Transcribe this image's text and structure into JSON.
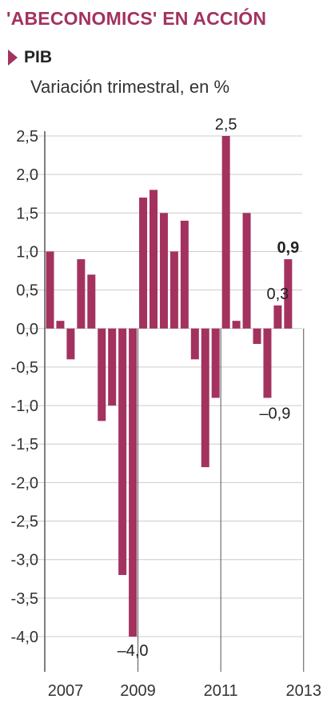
{
  "title": "'ABECONOMICS' EN ACCIÓN",
  "legend": {
    "label": "PIB"
  },
  "subtitle": "Variación trimestral, en %",
  "colors": {
    "bar": "#a3325f",
    "title": "#a3325f",
    "axis": "#555555",
    "grid": "#cccccc"
  },
  "chart_data": {
    "type": "bar",
    "ylim": [
      -4.0,
      2.5
    ],
    "yticks": [
      "2,5",
      "2,0",
      "1,5",
      "1,0",
      "0,5",
      "0,0",
      "-0,5",
      "-1,0",
      "-1,5",
      "-2,0",
      "-2,5",
      "-3,0",
      "-3,5",
      "-4,0"
    ],
    "ytick_values": [
      2.5,
      2.0,
      1.5,
      1.0,
      0.5,
      0.0,
      -0.5,
      -1.0,
      -1.5,
      -2.0,
      -2.5,
      -3.0,
      -3.5,
      -4.0
    ],
    "grid": "horizontal",
    "xtick_labels": [
      {
        "label": "2007",
        "quarter_index": 0
      },
      {
        "label": "2009",
        "quarter_index": 9
      },
      {
        "label": "2011",
        "quarter_index": 17
      },
      {
        "label": "2013",
        "quarter_index": 25
      }
    ],
    "values": [
      1.0,
      0.1,
      -0.4,
      0.9,
      0.7,
      -1.2,
      -1.0,
      -3.2,
      -4.0,
      1.7,
      1.8,
      1.5,
      1.0,
      1.4,
      -0.4,
      -1.8,
      -0.9,
      2.5,
      0.1,
      1.5,
      -0.2,
      -0.9,
      0.3,
      0.9
    ],
    "data_labels": [
      {
        "index": 8,
        "text": "–4,0",
        "bold": false
      },
      {
        "index": 17,
        "text": "2,5",
        "bold": false
      },
      {
        "index": 21,
        "text": "–0,9",
        "bold": false
      },
      {
        "index": 22,
        "text": "0,3",
        "bold": false
      },
      {
        "index": 23,
        "text": "0,9",
        "bold": true
      }
    ]
  }
}
